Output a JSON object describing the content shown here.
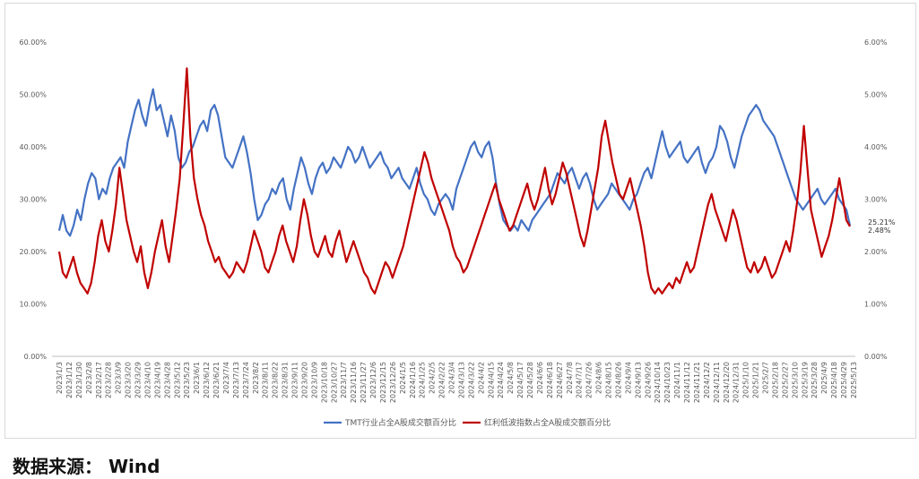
{
  "source": "数据来源： Wind",
  "chart_data": {
    "type": "line",
    "left_axis": {
      "ylim": [
        0,
        60
      ],
      "ticks": [
        "0.00%",
        "10.00%",
        "20.00%",
        "30.00%",
        "40.00%",
        "50.00%",
        "60.00%"
      ]
    },
    "right_axis": {
      "ylim": [
        0,
        6
      ],
      "ticks": [
        "0.00%",
        "1.00%",
        "2.00%",
        "3.00%",
        "4.00%",
        "5.00%",
        "6.00%"
      ]
    },
    "x_tick_labels": [
      "2023/1/3",
      "2023/1/12",
      "2023/1/30",
      "2023/2/8",
      "2023/2/17",
      "2023/2/28",
      "2023/3/9",
      "2023/3/20",
      "2023/3/29",
      "2023/4/10",
      "2023/4/19",
      "2023/4/28",
      "2023/5/12",
      "2023/5/23",
      "2023/6/1",
      "2023/6/12",
      "2023/6/21",
      "2023/7/4",
      "2023/7/13",
      "2023/7/24",
      "2023/8/2",
      "2023/8/11",
      "2023/8/22",
      "2023/8/31",
      "2023/9/11",
      "2023/9/20",
      "2023/10/9",
      "2023/10/18",
      "2023/10/27",
      "2023/11/7",
      "2023/11/16",
      "2023/11/27",
      "2023/12/6",
      "2023/12/15",
      "2023/12/26",
      "2024/1/5",
      "2024/1/16",
      "2024/1/25",
      "2024/2/5",
      "2024/2/22",
      "2024/3/4",
      "2024/3/13",
      "2024/3/22",
      "2024/4/2",
      "2024/4/15",
      "2024/4/24",
      "2024/5/8",
      "2024/5/17",
      "2024/5/28",
      "2024/6/6",
      "2024/6/18",
      "2024/6/27",
      "2024/7/8",
      "2024/7/17",
      "2024/7/26",
      "2024/8/6",
      "2024/8/15",
      "2024/8/26",
      "2024/9/4",
      "2024/9/13",
      "2024/9/26",
      "2024/10/14",
      "2024/10/23",
      "2024/11/1",
      "2024/11/12",
      "2024/11/21",
      "2024/12/2",
      "2024/12/11",
      "2024/12/20",
      "2024/12/31",
      "2025/1/10",
      "2025/1/21",
      "2025/2/7",
      "2025/2/18",
      "2025/2/27",
      "2025/3/10",
      "2025/3/19",
      "2025/3/28",
      "2025/4/9",
      "2025/4/18",
      "2025/4/29",
      "2025/5/13"
    ],
    "series": [
      {
        "name": "TMT行业占全A股成交额百分比",
        "axis": "left",
        "color": "#4472C4",
        "end_label": "25.21%",
        "values": [
          24,
          27,
          24,
          23,
          25,
          28,
          26,
          30,
          33,
          35,
          34,
          30,
          32,
          31,
          34,
          36,
          37,
          38,
          36,
          41,
          44,
          47,
          49,
          46,
          44,
          48,
          51,
          47,
          48,
          45,
          42,
          46,
          43,
          38,
          36,
          37,
          39,
          40,
          42,
          44,
          45,
          43,
          47,
          48,
          46,
          42,
          38,
          37,
          36,
          38,
          40,
          42,
          39,
          35,
          30,
          26,
          27,
          29,
          30,
          32,
          31,
          33,
          34,
          30,
          28,
          32,
          35,
          38,
          36,
          33,
          31,
          34,
          36,
          37,
          35,
          36,
          38,
          37,
          36,
          38,
          40,
          39,
          37,
          38,
          40,
          38,
          36,
          37,
          38,
          39,
          37,
          36,
          34,
          35,
          36,
          34,
          33,
          32,
          34,
          36,
          33,
          31,
          30,
          28,
          27,
          29,
          30,
          31,
          30,
          28,
          32,
          34,
          36,
          38,
          40,
          41,
          39,
          38,
          40,
          41,
          38,
          33,
          29,
          26,
          25,
          24,
          25,
          24,
          26,
          25,
          24,
          26,
          27,
          28,
          29,
          30,
          31,
          33,
          35,
          34,
          33,
          35,
          36,
          34,
          32,
          34,
          35,
          33,
          30,
          28,
          29,
          30,
          31,
          33,
          32,
          31,
          30,
          29,
          28,
          30,
          31,
          33,
          35,
          36,
          34,
          37,
          40,
          43,
          40,
          38,
          39,
          40,
          41,
          38,
          37,
          38,
          39,
          40,
          37,
          35,
          37,
          38,
          40,
          44,
          43,
          41,
          38,
          36,
          39,
          42,
          44,
          46,
          47,
          48,
          47,
          45,
          44,
          43,
          42,
          40,
          38,
          36,
          34,
          32,
          30,
          29,
          28,
          29,
          30,
          31,
          32,
          30,
          29,
          30,
          31,
          32,
          30,
          29,
          28,
          25
        ]
      },
      {
        "name": "红利低波指数占全A股成交额百分比",
        "axis": "right",
        "color": "#C00000",
        "end_label": "2.48%",
        "values": [
          2.0,
          1.6,
          1.5,
          1.7,
          1.9,
          1.6,
          1.4,
          1.3,
          1.2,
          1.4,
          1.8,
          2.3,
          2.6,
          2.2,
          2.0,
          2.4,
          2.9,
          3.6,
          3.1,
          2.6,
          2.3,
          2.0,
          1.8,
          2.1,
          1.6,
          1.3,
          1.6,
          2.0,
          2.3,
          2.6,
          2.1,
          1.8,
          2.3,
          2.8,
          3.4,
          4.4,
          5.5,
          4.2,
          3.4,
          3.0,
          2.7,
          2.5,
          2.2,
          2.0,
          1.8,
          1.9,
          1.7,
          1.6,
          1.5,
          1.6,
          1.8,
          1.7,
          1.6,
          1.8,
          2.1,
          2.4,
          2.2,
          2.0,
          1.7,
          1.6,
          1.8,
          2.0,
          2.3,
          2.5,
          2.2,
          2.0,
          1.8,
          2.1,
          2.6,
          3.0,
          2.7,
          2.3,
          2.0,
          1.9,
          2.1,
          2.3,
          2.0,
          1.9,
          2.2,
          2.4,
          2.1,
          1.8,
          2.0,
          2.2,
          2.0,
          1.8,
          1.6,
          1.5,
          1.3,
          1.2,
          1.4,
          1.6,
          1.8,
          1.7,
          1.5,
          1.7,
          1.9,
          2.1,
          2.4,
          2.7,
          3.0,
          3.3,
          3.6,
          3.9,
          3.7,
          3.4,
          3.2,
          3.0,
          2.8,
          2.6,
          2.4,
          2.1,
          1.9,
          1.8,
          1.6,
          1.7,
          1.9,
          2.1,
          2.3,
          2.5,
          2.7,
          2.9,
          3.1,
          3.3,
          3.0,
          2.8,
          2.6,
          2.4,
          2.5,
          2.7,
          2.9,
          3.1,
          3.3,
          3.0,
          2.8,
          3.0,
          3.3,
          3.6,
          3.2,
          2.9,
          3.1,
          3.4,
          3.7,
          3.5,
          3.2,
          2.9,
          2.6,
          2.3,
          2.1,
          2.4,
          2.8,
          3.2,
          3.6,
          4.2,
          4.5,
          4.1,
          3.7,
          3.4,
          3.1,
          3.0,
          3.2,
          3.4,
          3.1,
          2.8,
          2.5,
          2.1,
          1.6,
          1.3,
          1.2,
          1.3,
          1.2,
          1.3,
          1.4,
          1.3,
          1.5,
          1.4,
          1.6,
          1.8,
          1.6,
          1.7,
          2.0,
          2.3,
          2.6,
          2.9,
          3.1,
          2.8,
          2.6,
          2.4,
          2.2,
          2.5,
          2.8,
          2.6,
          2.3,
          2.0,
          1.7,
          1.6,
          1.8,
          1.6,
          1.7,
          1.9,
          1.7,
          1.5,
          1.6,
          1.8,
          2.0,
          2.2,
          2.0,
          2.4,
          2.9,
          3.5,
          4.4,
          3.6,
          2.8,
          2.5,
          2.2,
          1.9,
          2.1,
          2.3,
          2.6,
          3.0,
          3.4,
          3.0,
          2.6,
          2.48
        ]
      }
    ],
    "legend": "bottom",
    "grid": false
  }
}
